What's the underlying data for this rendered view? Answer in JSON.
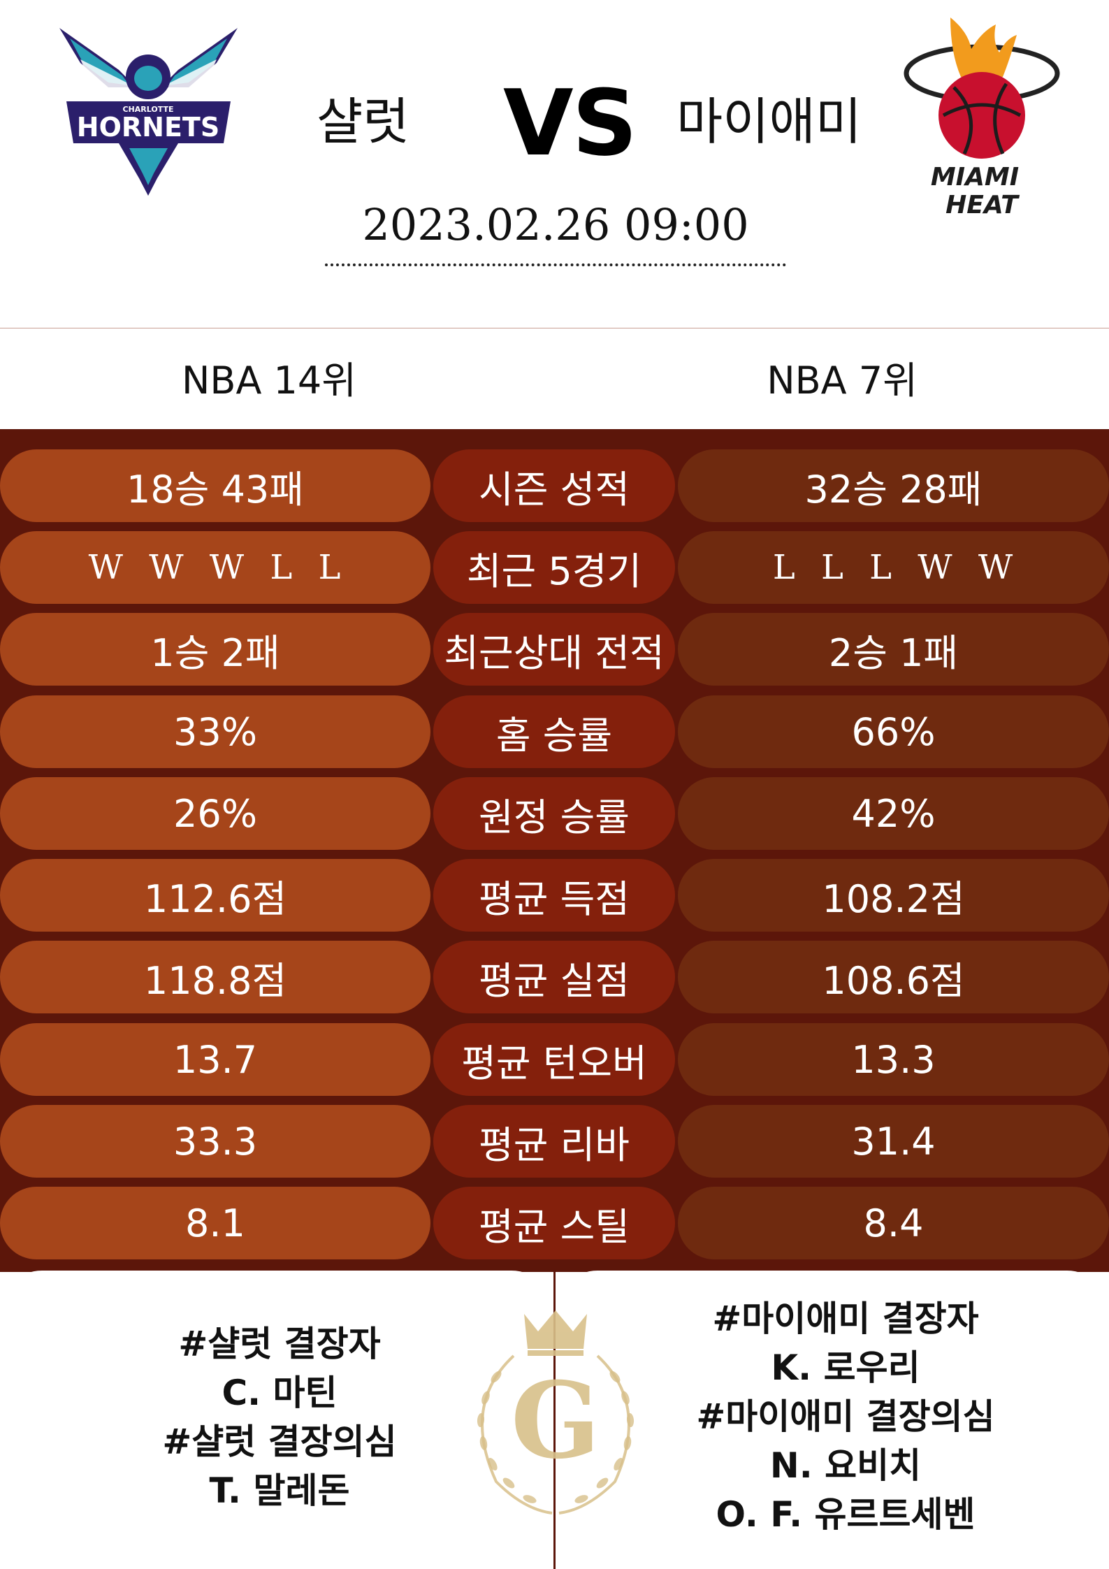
{
  "match": {
    "home_team": "샬럿",
    "vs_label": "VS",
    "away_team": "마이애미",
    "datetime": "2023.02.26  09:00"
  },
  "logos": {
    "home_logo_text_top": "CHARLOTTE",
    "home_logo_text_main": "HORNETS",
    "away_logo_text_line1": "MIAMI",
    "away_logo_text_line2": "HEAT",
    "emblem_letter": "G"
  },
  "rank": {
    "home": "NBA 14위",
    "away": "NBA 7위"
  },
  "stats": [
    {
      "home": "18승 43패",
      "label": "시즌 성적",
      "away": "32승 28패"
    },
    {
      "home": "W  W  W  L  L",
      "label": "최근 5경기",
      "away": "L  L  L  W  W"
    },
    {
      "home": "1승 2패",
      "label": "최근상대 전적",
      "away": "2승 1패"
    },
    {
      "home": "33%",
      "label": "홈 승률",
      "away": "66%"
    },
    {
      "home": "26%",
      "label": "원정 승률",
      "away": "42%"
    },
    {
      "home": "112.6점",
      "label": "평균 득점",
      "away": "108.2점"
    },
    {
      "home": "118.8점",
      "label": "평균 실점",
      "away": "108.6점"
    },
    {
      "home": "13.7",
      "label": "평균 턴오버",
      "away": "13.3"
    },
    {
      "home": "33.3",
      "label": "평균 리바",
      "away": "31.4"
    },
    {
      "home": "8.1",
      "label": "평균 스틸",
      "away": "8.4"
    }
  ],
  "absences": {
    "home": [
      "#샬럿 결장자",
      "C. 마틴",
      "#샬럿 결장의심",
      "T. 말레돈"
    ],
    "away": [
      "#마이애미 결장자",
      "K. 로우리",
      "#마이애미 결장의심",
      "N. 요비치",
      "O. F. 유르트세벤"
    ]
  },
  "colors": {
    "background_stats": "#5c160a",
    "pill_home": "#a6451a",
    "pill_label": "#84200c",
    "pill_away": "#6f2a0f",
    "hornets_purple": "#2b1f6b",
    "hornets_teal": "#2aa2b8",
    "heat_red": "#c8102e",
    "emblem_gold": "#d8c08a"
  }
}
